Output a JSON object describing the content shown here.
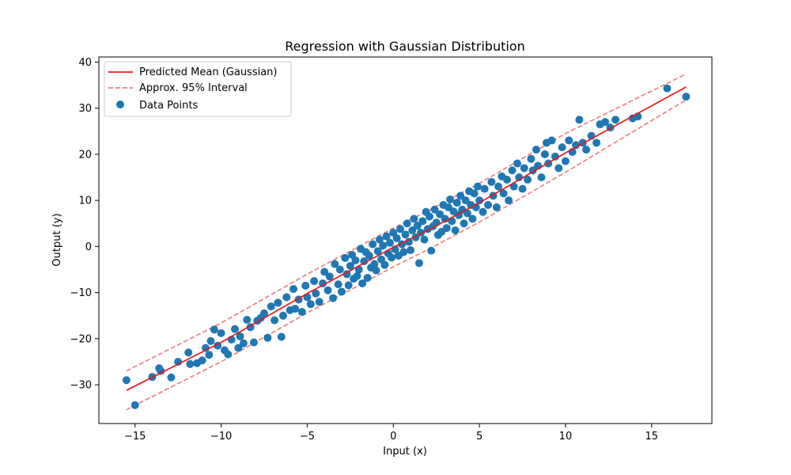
{
  "chart_data": {
    "type": "scatter",
    "title": "Regression with Gaussian Distribution",
    "xlabel": "Input (x)",
    "ylabel": "Output (y)",
    "xlim": [
      -17.1,
      18.5
    ],
    "ylim": [
      -38.4,
      41.1
    ],
    "xticks": [
      -15,
      -10,
      -5,
      0,
      5,
      10,
      15
    ],
    "yticks": [
      -30,
      -20,
      -10,
      0,
      10,
      20,
      30,
      40
    ],
    "xtick_labels": [
      "−15",
      "−10",
      "−5",
      "0",
      "5",
      "10",
      "15"
    ],
    "ytick_labels": [
      "−30",
      "−20",
      "−10",
      "0",
      "10",
      "20",
      "30",
      "40"
    ],
    "grid": false,
    "legend_position": "top-left",
    "colors": {
      "mean": "#e41a1c",
      "interval": "#f08080",
      "points": "#1f77b4"
    },
    "series": [
      {
        "name": "Predicted Mean (Gaussian)",
        "kind": "line",
        "style": "solid",
        "x": [
          -15.5,
          -10,
          -5,
          -2,
          0,
          2,
          5,
          10,
          17
        ],
        "y": [
          -31.2,
          -20.8,
          -10.2,
          -4.2,
          -0.2,
          3.5,
          9.5,
          20.3,
          34.6
        ]
      },
      {
        "name": "Approx. 95% Interval",
        "kind": "band",
        "style": "dashed",
        "x": [
          -15.5,
          -10,
          -5,
          -2,
          0,
          2,
          5,
          10,
          17
        ],
        "upper": [
          -27.0,
          -16.6,
          -6.0,
          0.0,
          4.0,
          7.7,
          13.7,
          24.5,
          37.4
        ],
        "lower": [
          -35.4,
          -25.0,
          -14.4,
          -8.4,
          -4.4,
          -0.7,
          5.3,
          16.1,
          31.8
        ]
      },
      {
        "name": "Data Points",
        "kind": "scatter",
        "points": [
          [
            -15.5,
            -29.0
          ],
          [
            -15.0,
            -34.4
          ],
          [
            -14.0,
            -28.3
          ],
          [
            -13.6,
            -26.4
          ],
          [
            -13.5,
            -27.0
          ],
          [
            -12.9,
            -28.4
          ],
          [
            -12.5,
            -25.0
          ],
          [
            -11.9,
            -23.0
          ],
          [
            -11.8,
            -25.5
          ],
          [
            -11.4,
            -25.3
          ],
          [
            -11.1,
            -24.7
          ],
          [
            -10.9,
            -22.0
          ],
          [
            -10.7,
            -23.5
          ],
          [
            -10.6,
            -20.5
          ],
          [
            -10.4,
            -18.0
          ],
          [
            -10.2,
            -21.5
          ],
          [
            -10.0,
            -18.8
          ],
          [
            -9.8,
            -22.5
          ],
          [
            -9.6,
            -23.4
          ],
          [
            -9.4,
            -20.2
          ],
          [
            -9.2,
            -17.9
          ],
          [
            -9.0,
            -22.0
          ],
          [
            -8.9,
            -19.5
          ],
          [
            -8.7,
            -21.0
          ],
          [
            -8.5,
            -15.9
          ],
          [
            -8.3,
            -17.5
          ],
          [
            -8.1,
            -20.8
          ],
          [
            -7.9,
            -16.1
          ],
          [
            -7.7,
            -15.5
          ],
          [
            -7.5,
            -14.5
          ],
          [
            -7.3,
            -19.8
          ],
          [
            -7.1,
            -13.0
          ],
          [
            -6.9,
            -16.0
          ],
          [
            -6.7,
            -12.2
          ],
          [
            -6.5,
            -19.6
          ],
          [
            -6.4,
            -15.0
          ],
          [
            -6.2,
            -11.0
          ],
          [
            -6.0,
            -13.8
          ],
          [
            -5.8,
            -9.2
          ],
          [
            -5.7,
            -13.5
          ],
          [
            -5.5,
            -11.5
          ],
          [
            -5.3,
            -14.2
          ],
          [
            -5.1,
            -8.5
          ],
          [
            -5.0,
            -11.0
          ],
          [
            -4.8,
            -12.5
          ],
          [
            -4.6,
            -7.5
          ],
          [
            -4.5,
            -10.2
          ],
          [
            -4.3,
            -12.0
          ],
          [
            -4.1,
            -8.0
          ],
          [
            -4.0,
            -5.5
          ],
          [
            -3.8,
            -9.5
          ],
          [
            -3.7,
            -6.5
          ],
          [
            -3.5,
            -11.2
          ],
          [
            -3.4,
            -3.8
          ],
          [
            -3.2,
            -8.2
          ],
          [
            -3.1,
            -5.0
          ],
          [
            -3.0,
            -9.8
          ],
          [
            -2.8,
            -2.5
          ],
          [
            -2.7,
            -6.0
          ],
          [
            -2.6,
            -8.4
          ],
          [
            -2.5,
            -4.2
          ],
          [
            -2.4,
            -1.8
          ],
          [
            -2.3,
            -7.0
          ],
          [
            -2.2,
            -3.0
          ],
          [
            -2.1,
            -6.4
          ],
          [
            -2.0,
            -5.0
          ],
          [
            -1.9,
            -0.5
          ],
          [
            -1.8,
            -8.0
          ],
          [
            -1.7,
            -3.2
          ],
          [
            -1.6,
            -1.2
          ],
          [
            -1.5,
            -6.8
          ],
          [
            -1.4,
            -2.0
          ],
          [
            -1.3,
            -4.6
          ],
          [
            -1.2,
            0.5
          ],
          [
            -1.1,
            -3.8
          ],
          [
            -1.0,
            -5.2
          ],
          [
            -0.9,
            -1.0
          ],
          [
            -0.8,
            1.5
          ],
          [
            -0.7,
            -2.8
          ],
          [
            -0.6,
            0.2
          ],
          [
            -0.5,
            -4.0
          ],
          [
            -0.4,
            2.2
          ],
          [
            -0.3,
            -1.5
          ],
          [
            -0.2,
            0.8
          ],
          [
            -0.1,
            -2.4
          ],
          [
            0.0,
            3.0
          ],
          [
            0.1,
            -0.6
          ],
          [
            0.2,
            1.8
          ],
          [
            0.3,
            -2.0
          ],
          [
            0.4,
            3.8
          ],
          [
            0.5,
            0.5
          ],
          [
            0.6,
            -1.2
          ],
          [
            0.7,
            2.6
          ],
          [
            0.8,
            5.0
          ],
          [
            0.9,
            1.0
          ],
          [
            1.0,
            -0.8
          ],
          [
            1.1,
            3.5
          ],
          [
            1.2,
            6.0
          ],
          [
            1.3,
            2.0
          ],
          [
            1.4,
            4.5
          ],
          [
            1.5,
            -3.6
          ],
          [
            1.6,
            3.0
          ],
          [
            1.7,
            5.5
          ],
          [
            1.8,
            1.5
          ],
          [
            1.9,
            7.5
          ],
          [
            2.0,
            3.8
          ],
          [
            2.1,
            6.5
          ],
          [
            2.2,
            -0.9
          ],
          [
            2.3,
            4.4
          ],
          [
            2.4,
            8.0
          ],
          [
            2.5,
            5.2
          ],
          [
            2.6,
            2.5
          ],
          [
            2.7,
            7.0
          ],
          [
            2.8,
            3.2
          ],
          [
            2.9,
            9.0
          ],
          [
            3.0,
            6.0
          ],
          [
            3.1,
            4.0
          ],
          [
            3.2,
            8.5
          ],
          [
            3.3,
            10.2
          ],
          [
            3.4,
            5.5
          ],
          [
            3.5,
            7.6
          ],
          [
            3.6,
            3.5
          ],
          [
            3.7,
            9.5
          ],
          [
            3.8,
            6.8
          ],
          [
            3.9,
            11.0
          ],
          [
            4.0,
            8.0
          ],
          [
            4.1,
            5.0
          ],
          [
            4.2,
            10.0
          ],
          [
            4.3,
            7.2
          ],
          [
            4.4,
            12.0
          ],
          [
            4.5,
            9.0
          ],
          [
            4.6,
            6.0
          ],
          [
            4.7,
            11.5
          ],
          [
            4.8,
            8.5
          ],
          [
            4.9,
            13.0
          ],
          [
            5.0,
            10.0
          ],
          [
            5.2,
            7.5
          ],
          [
            5.3,
            12.5
          ],
          [
            5.5,
            9.0
          ],
          [
            5.7,
            14.0
          ],
          [
            5.8,
            11.0
          ],
          [
            6.0,
            8.5
          ],
          [
            6.1,
            13.0
          ],
          [
            6.3,
            15.2
          ],
          [
            6.4,
            11.5
          ],
          [
            6.6,
            14.5
          ],
          [
            6.7,
            10.0
          ],
          [
            6.9,
            16.5
          ],
          [
            7.0,
            13.0
          ],
          [
            7.2,
            18.0
          ],
          [
            7.3,
            15.0
          ],
          [
            7.5,
            12.5
          ],
          [
            7.6,
            17.0
          ],
          [
            7.8,
            14.5
          ],
          [
            8.0,
            19.0
          ],
          [
            8.1,
            16.5
          ],
          [
            8.3,
            21.0
          ],
          [
            8.4,
            17.5
          ],
          [
            8.6,
            15.0
          ],
          [
            8.8,
            20.0
          ],
          [
            8.9,
            22.5
          ],
          [
            9.0,
            18.0
          ],
          [
            9.2,
            23.0
          ],
          [
            9.4,
            19.5
          ],
          [
            9.6,
            17.0
          ],
          [
            9.8,
            21.5
          ],
          [
            10.0,
            18.5
          ],
          [
            10.2,
            23.0
          ],
          [
            10.4,
            20.5
          ],
          [
            10.6,
            22.0
          ],
          [
            10.8,
            27.5
          ],
          [
            11.0,
            22.5
          ],
          [
            11.2,
            21.0
          ],
          [
            11.5,
            24.0
          ],
          [
            11.8,
            22.5
          ],
          [
            12.0,
            26.5
          ],
          [
            12.3,
            27.0
          ],
          [
            12.6,
            25.8
          ],
          [
            12.9,
            27.5
          ],
          [
            13.9,
            27.8
          ],
          [
            14.2,
            28.2
          ],
          [
            15.9,
            34.3
          ],
          [
            17.0,
            32.5
          ]
        ]
      }
    ]
  }
}
